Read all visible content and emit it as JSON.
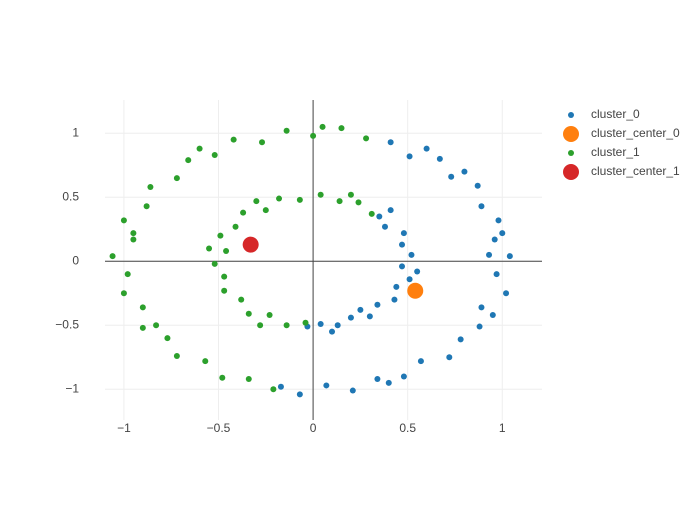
{
  "chart_data": {
    "type": "scatter",
    "xlim": [
      -1.1,
      1.21
    ],
    "ylim": [
      -1.24,
      1.26
    ],
    "xticks": [
      {
        "value": -1,
        "label": "−1"
      },
      {
        "value": -0.5,
        "label": "−0.5"
      },
      0,
      0.5,
      1
    ],
    "yticks": [
      {
        "value": -1,
        "label": "−1"
      },
      {
        "value": -0.5,
        "label": "−0.5"
      },
      0,
      0.5,
      1
    ],
    "grid": true,
    "zeroline": true,
    "legend": "top-right",
    "series": [
      {
        "name": "cluster_0",
        "color": "#1f77b4",
        "marker_size": 6,
        "x": [
          0.41,
          0.51,
          0.67,
          0.73,
          0.87,
          0.89,
          0.98,
          0.96,
          1.04,
          0.97,
          1.02,
          0.89,
          0.88,
          0.78,
          0.72,
          0.57,
          0.48,
          0.34,
          0.21,
          0.07,
          -0.07,
          -0.17,
          0.6,
          0.93,
          0.95,
          0.4,
          1.0,
          0.8,
          0.35,
          0.38,
          0.48,
          0.47,
          0.52,
          0.47,
          0.51,
          0.44,
          0.43,
          0.34,
          0.3,
          0.2,
          0.13,
          0.04,
          -0.03,
          0.41,
          0.55,
          0.25,
          0.1
        ],
        "y": [
          0.93,
          0.82,
          0.8,
          0.66,
          0.59,
          0.43,
          0.32,
          0.17,
          0.04,
          -0.1,
          -0.25,
          -0.36,
          -0.51,
          -0.61,
          -0.75,
          -0.78,
          -0.9,
          -0.92,
          -1.01,
          -0.97,
          -1.04,
          -0.98,
          0.88,
          0.05,
          -0.42,
          -0.95,
          0.22,
          0.7,
          0.35,
          0.27,
          0.22,
          0.13,
          0.05,
          -0.04,
          -0.14,
          -0.2,
          -0.3,
          -0.34,
          -0.43,
          -0.44,
          -0.5,
          -0.49,
          -0.51,
          0.4,
          -0.08,
          -0.38,
          -0.55
        ]
      },
      {
        "name": "cluster_center_0",
        "color": "#ff7f0e",
        "marker_size": 16,
        "x": [
          0.54
        ],
        "y": [
          -0.23
        ]
      },
      {
        "name": "cluster_1",
        "color": "#2ca02c",
        "marker_size": 6,
        "x": [
          0.28,
          0.15,
          0,
          -0.14,
          -0.27,
          -0.42,
          -0.52,
          -0.66,
          -0.72,
          -0.86,
          -0.88,
          -1.0,
          -0.95,
          -1.06,
          -0.98,
          -1.0,
          -0.9,
          -0.9,
          -0.77,
          -0.72,
          -0.57,
          -0.48,
          -0.34,
          -0.21,
          0.05,
          -0.6,
          -0.95,
          -0.83,
          0.31,
          0.24,
          0.14,
          0.04,
          -0.07,
          -0.18,
          -0.25,
          -0.37,
          -0.41,
          -0.49,
          -0.46,
          -0.52,
          -0.47,
          -0.47,
          -0.38,
          -0.34,
          -0.23,
          -0.14,
          -0.04,
          -0.3,
          0.2,
          -0.55,
          -0.28
        ],
        "y": [
          0.96,
          1.04,
          0.98,
          1.02,
          0.93,
          0.95,
          0.83,
          0.79,
          0.65,
          0.58,
          0.43,
          0.32,
          0.17,
          0.04,
          -0.1,
          -0.25,
          -0.36,
          -0.52,
          -0.6,
          -0.74,
          -0.78,
          -0.91,
          -0.92,
          -1.0,
          1.05,
          0.88,
          0.22,
          -0.5,
          0.37,
          0.46,
          0.47,
          0.52,
          0.48,
          0.49,
          0.4,
          0.38,
          0.27,
          0.2,
          0.08,
          -0.02,
          -0.12,
          -0.23,
          -0.3,
          -0.41,
          -0.42,
          -0.5,
          -0.48,
          0.47,
          0.52,
          0.1,
          -0.5
        ]
      },
      {
        "name": "cluster_center_1",
        "color": "#d62728",
        "marker_size": 16,
        "x": [
          -0.33
        ],
        "y": [
          0.13
        ]
      }
    ]
  }
}
